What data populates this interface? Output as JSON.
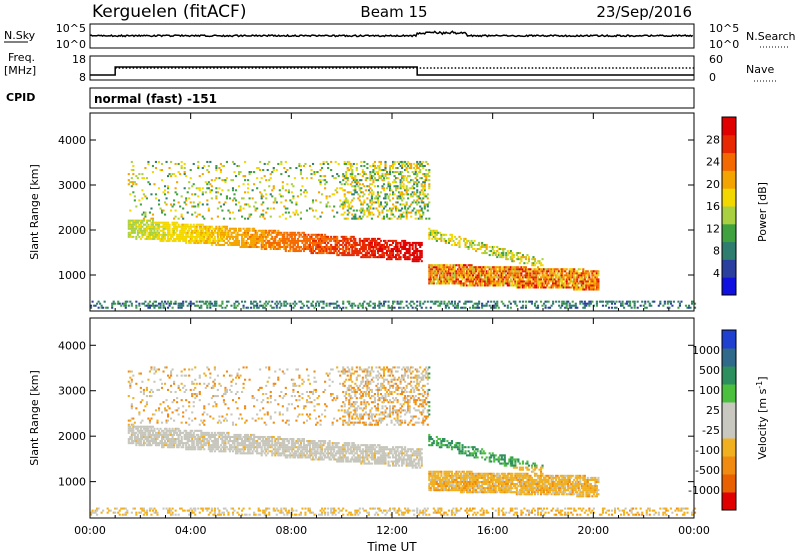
{
  "header": {
    "station": "Kerguelen (fitACF)",
    "beam": "Beam 15",
    "date": "23/Sep/2016"
  },
  "top_panels": {
    "nsky_label": "N.Sky",
    "nsky_ticks": [
      "10^5",
      "10^0"
    ],
    "nsearch_label": "N.Search",
    "freq_label_1": "Freq.",
    "freq_label_2": "[MHz]",
    "freq_ticks": [
      "18",
      "8"
    ],
    "nave_ticks": [
      "60",
      "0"
    ],
    "nave_label": "Nave",
    "cpid_label": "CPID",
    "cpid_text": "normal (fast) -151"
  },
  "colors": {
    "power": [
      "#1010e0",
      "#2b3f9e",
      "#2f7d6e",
      "#3fa23f",
      "#a8d040",
      "#f3d800",
      "#f4a400",
      "#f46a00",
      "#e82800",
      "#e00000"
    ],
    "velocity": [
      "#2040d0",
      "#2f6a8a",
      "#2e8f5e",
      "#4bbf3e",
      "#c8c8c0",
      "#c8c8c0",
      "#f0b020",
      "#f08a10",
      "#e86000",
      "#e00000"
    ],
    "echo_grey": "#c6c6bc"
  },
  "chart_data": [
    {
      "type": "heatmap",
      "title": "",
      "xlabel": "",
      "ylabel": "Slant Range [km]",
      "x_ticks": [
        "00:00",
        "04:00",
        "08:00",
        "12:00",
        "16:00",
        "20:00",
        "00:00"
      ],
      "y_ticks": [
        "1000",
        "2000",
        "3000",
        "4000"
      ],
      "ylim": [
        200,
        4600
      ],
      "xlim_hours": [
        0,
        24
      ],
      "colorbar": {
        "label": "Power [dB]",
        "ticks": [
          "4",
          "8",
          "12",
          "16",
          "20",
          "24",
          "28"
        ],
        "range": [
          0,
          32
        ]
      },
      "features": [
        {
          "name": "main-echo-band",
          "t": [
            1.5,
            13.0
          ],
          "range_start": [
            1850,
            1300
          ],
          "value_db": 22
        },
        {
          "name": "late-echo-band",
          "t": [
            13.5,
            20.0
          ],
          "range": [
            800,
            1200
          ],
          "value_db": 24
        },
        {
          "name": "high-range-echo",
          "t": [
            1.5,
            13.0
          ],
          "range": [
            2300,
            3500
          ],
          "value_db": 10
        },
        {
          "name": "ground-clutter",
          "t": [
            0,
            24
          ],
          "range": [
            250,
            400
          ],
          "value_db": 6
        }
      ]
    },
    {
      "type": "heatmap",
      "title": "",
      "xlabel": "Time UT",
      "ylabel": "Slant Range [km]",
      "x_ticks": [
        "00:00",
        "04:00",
        "08:00",
        "12:00",
        "16:00",
        "20:00",
        "00:00"
      ],
      "y_ticks": [
        "1000",
        "2000",
        "3000",
        "4000"
      ],
      "ylim": [
        200,
        4600
      ],
      "xlim_hours": [
        0,
        24
      ],
      "colorbar": {
        "label": "Velocity [m s",
        "label_sup": "-1",
        "label_end": "]",
        "ticks": [
          "1000",
          "500",
          "100",
          "25",
          "-25",
          "-100",
          "-500",
          "-1000"
        ]
      },
      "features": [
        {
          "name": "main-echo-band",
          "t": [
            1.5,
            13.0
          ],
          "velocity": 0
        },
        {
          "name": "late-echo-band",
          "t": [
            13.5,
            20.0
          ],
          "velocity": -150
        },
        {
          "name": "high-range-echo",
          "t": [
            1.5,
            13.0
          ],
          "velocity": -200
        }
      ]
    }
  ]
}
